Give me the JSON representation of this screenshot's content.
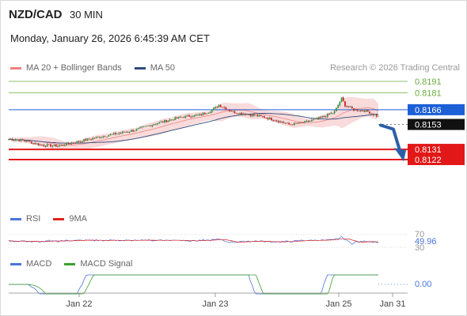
{
  "header": {
    "symbol": "NZD/CAD",
    "timeframe": "30 MIN",
    "datetime": "Monday, January 26, 2026 6:45:39 AM CET",
    "credit": "Research © 2026 Trading Central"
  },
  "legend_main": [
    {
      "label": "MA 20 + Bollinger Bands",
      "color": "#f08080"
    },
    {
      "label": "MA 50",
      "color": "#2b4c7e"
    }
  ],
  "legend_rsi": [
    {
      "label": "RSI",
      "color": "#4a74d9"
    },
    {
      "label": "9MA",
      "color": "#e02020"
    }
  ],
  "legend_macd": [
    {
      "label": "MACD",
      "color": "#4a74d9"
    },
    {
      "label": "MACD Signal",
      "color": "#3aa030"
    }
  ],
  "chart_data": [
    {
      "type": "candlestick",
      "ylim": [
        0.80906,
        0.81952
      ],
      "levels": [
        {
          "value": 0.8191,
          "label": "0.8191",
          "style": "green-line"
        },
        {
          "value": 0.8181,
          "label": "0.8181",
          "style": "green-line"
        },
        {
          "value": 0.8166,
          "label": "0.8166",
          "style": "blue-line"
        },
        {
          "value": 0.8153,
          "label": "0.8153",
          "style": "current-price"
        },
        {
          "value": 0.8131,
          "label": "0.8131",
          "style": "red-line"
        },
        {
          "value": 0.8122,
          "label": "0.8122",
          "style": "red-line"
        }
      ],
      "x_ticks": [
        "Jan 22",
        "Jan 23",
        "Jan 25",
        "Jan 31"
      ],
      "forecast": "down"
    },
    {
      "type": "line",
      "name": "RSI",
      "ylim": [
        30,
        70
      ],
      "ticks": [
        "70",
        "30"
      ],
      "last_value": "49.96"
    },
    {
      "type": "line",
      "name": "MACD",
      "zero_label": "0.00"
    }
  ],
  "colors": {
    "up": "#2e9e3e",
    "down": "#d62020",
    "blue": "#1c5fd6",
    "red": "#e21818",
    "green": "#6aad3d",
    "band": "#f6c7c7"
  }
}
